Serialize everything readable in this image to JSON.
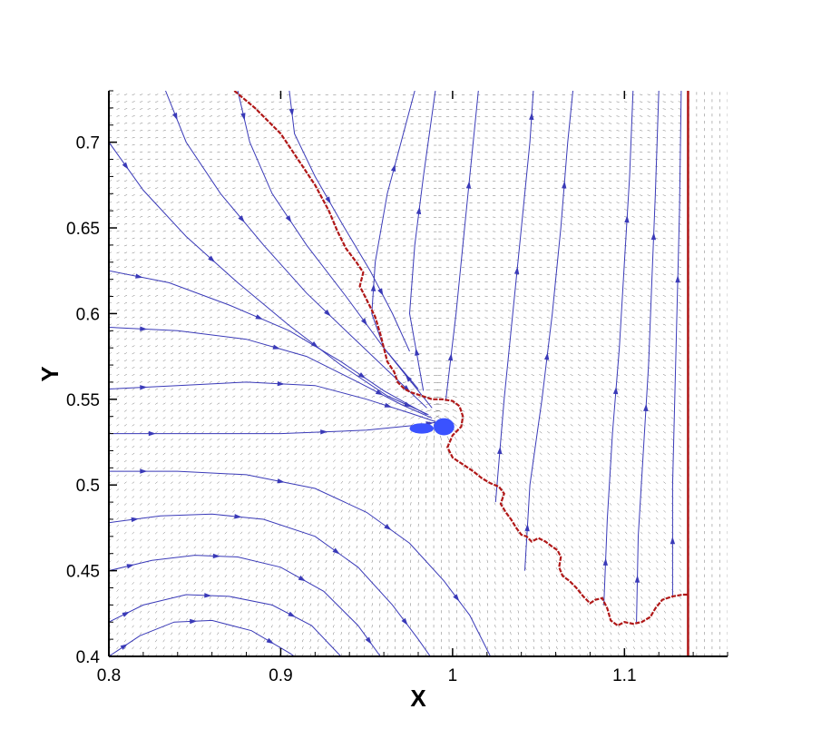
{
  "chart_data": {
    "type": "line",
    "title": "",
    "xlabel": "X",
    "ylabel": "Y",
    "xlim": [
      0.8,
      1.16
    ],
    "ylim": [
      0.4,
      0.73
    ],
    "x_ticks": [
      0.8,
      0.9,
      1.0,
      1.1
    ],
    "x_tick_labels": [
      "0.8",
      "0.9",
      "1",
      "1.1"
    ],
    "y_ticks": [
      0.4,
      0.45,
      0.5,
      0.55,
      0.6,
      0.65,
      0.7
    ],
    "y_tick_labels": [
      "0.4",
      "0.45",
      "0.5",
      "0.55",
      "0.6",
      "0.65",
      "0.7"
    ],
    "grid": false,
    "legend": "none",
    "colors": {
      "streamline": "#3a3ab8",
      "interface": "#b01818",
      "vector": "#000000",
      "blob": "#3a52ff"
    },
    "vertical_line_x": 1.137,
    "interface_curve": [
      [
        0.873,
        0.73
      ],
      [
        0.885,
        0.72
      ],
      [
        0.9,
        0.705
      ],
      [
        0.91,
        0.69
      ],
      [
        0.92,
        0.675
      ],
      [
        0.928,
        0.66
      ],
      [
        0.933,
        0.648
      ],
      [
        0.938,
        0.638
      ],
      [
        0.944,
        0.63
      ],
      [
        0.948,
        0.624
      ],
      [
        0.946,
        0.616
      ],
      [
        0.95,
        0.608
      ],
      [
        0.955,
        0.598
      ],
      [
        0.958,
        0.588
      ],
      [
        0.96,
        0.58
      ],
      [
        0.962,
        0.572
      ],
      [
        0.966,
        0.566
      ],
      [
        0.968,
        0.56
      ],
      [
        0.972,
        0.556
      ],
      [
        0.976,
        0.554
      ],
      [
        0.982,
        0.552
      ],
      [
        0.988,
        0.55
      ],
      [
        0.994,
        0.55
      ],
      [
        1.0,
        0.549
      ],
      [
        1.004,
        0.546
      ],
      [
        1.006,
        0.54
      ],
      [
        1.005,
        0.534
      ],
      [
        1.0,
        0.529
      ],
      [
        0.997,
        0.522
      ],
      [
        1.0,
        0.516
      ],
      [
        1.006,
        0.512
      ],
      [
        1.012,
        0.508
      ],
      [
        1.017,
        0.504
      ],
      [
        1.022,
        0.501
      ],
      [
        1.027,
        0.499
      ],
      [
        1.03,
        0.495
      ],
      [
        1.028,
        0.489
      ],
      [
        1.031,
        0.484
      ],
      [
        1.034,
        0.48
      ],
      [
        1.037,
        0.475
      ],
      [
        1.04,
        0.471
      ],
      [
        1.043,
        0.47
      ],
      [
        1.046,
        0.467
      ],
      [
        1.05,
        0.469
      ],
      [
        1.054,
        0.467
      ],
      [
        1.058,
        0.464
      ],
      [
        1.061,
        0.462
      ],
      [
        1.063,
        0.458
      ],
      [
        1.062,
        0.452
      ],
      [
        1.064,
        0.447
      ],
      [
        1.068,
        0.444
      ],
      [
        1.072,
        0.44
      ],
      [
        1.076,
        0.435
      ],
      [
        1.08,
        0.431
      ],
      [
        1.083,
        0.433
      ],
      [
        1.087,
        0.434
      ],
      [
        1.09,
        0.428
      ],
      [
        1.092,
        0.421
      ],
      [
        1.096,
        0.418
      ],
      [
        1.1,
        0.42
      ],
      [
        1.105,
        0.419
      ],
      [
        1.11,
        0.42
      ],
      [
        1.115,
        0.423
      ],
      [
        1.118,
        0.428
      ],
      [
        1.122,
        0.433
      ],
      [
        1.128,
        0.435
      ],
      [
        1.134,
        0.436
      ],
      [
        1.137,
        0.436
      ]
    ],
    "streamlines": [
      [
        [
          0.8,
          0.4
        ],
        [
          0.818,
          0.412
        ],
        [
          0.838,
          0.42
        ],
        [
          0.86,
          0.421
        ],
        [
          0.883,
          0.415
        ],
        [
          0.905,
          0.402
        ],
        [
          0.908,
          0.4
        ]
      ],
      [
        [
          0.8,
          0.42
        ],
        [
          0.82,
          0.43
        ],
        [
          0.845,
          0.436
        ],
        [
          0.87,
          0.435
        ],
        [
          0.895,
          0.43
        ],
        [
          0.918,
          0.418
        ],
        [
          0.935,
          0.4
        ]
      ],
      [
        [
          0.8,
          0.45
        ],
        [
          0.825,
          0.456
        ],
        [
          0.85,
          0.459
        ],
        [
          0.875,
          0.458
        ],
        [
          0.9,
          0.452
        ],
        [
          0.925,
          0.438
        ],
        [
          0.945,
          0.418
        ],
        [
          0.958,
          0.4
        ]
      ],
      [
        [
          0.8,
          0.478
        ],
        [
          0.83,
          0.482
        ],
        [
          0.86,
          0.483
        ],
        [
          0.89,
          0.48
        ],
        [
          0.92,
          0.47
        ],
        [
          0.945,
          0.452
        ],
        [
          0.965,
          0.43
        ],
        [
          0.98,
          0.41
        ],
        [
          0.987,
          0.4
        ]
      ],
      [
        [
          0.8,
          0.508
        ],
        [
          0.84,
          0.508
        ],
        [
          0.88,
          0.506
        ],
        [
          0.92,
          0.498
        ],
        [
          0.95,
          0.484
        ],
        [
          0.975,
          0.466
        ],
        [
          0.995,
          0.444
        ],
        [
          1.01,
          0.424
        ],
        [
          1.022,
          0.4
        ]
      ],
      [
        [
          0.8,
          0.53
        ],
        [
          0.85,
          0.53
        ],
        [
          0.9,
          0.53
        ],
        [
          0.95,
          0.532
        ],
        [
          0.98,
          0.535
        ],
        [
          0.993,
          0.537
        ]
      ],
      [
        [
          0.8,
          0.556
        ],
        [
          0.84,
          0.558
        ],
        [
          0.88,
          0.56
        ],
        [
          0.92,
          0.558
        ],
        [
          0.95,
          0.55
        ],
        [
          0.975,
          0.542
        ],
        [
          0.99,
          0.537
        ]
      ],
      [
        [
          0.8,
          0.592
        ],
        [
          0.84,
          0.59
        ],
        [
          0.88,
          0.585
        ],
        [
          0.915,
          0.575
        ],
        [
          0.945,
          0.56
        ],
        [
          0.97,
          0.547
        ],
        [
          0.988,
          0.539
        ]
      ],
      [
        [
          0.8,
          0.625
        ],
        [
          0.835,
          0.618
        ],
        [
          0.87,
          0.605
        ],
        [
          0.905,
          0.59
        ],
        [
          0.935,
          0.572
        ],
        [
          0.96,
          0.555
        ],
        [
          0.985,
          0.541
        ]
      ],
      [
        [
          0.8,
          0.7
        ],
        [
          0.82,
          0.672
        ],
        [
          0.845,
          0.645
        ],
        [
          0.875,
          0.618
        ],
        [
          0.905,
          0.593
        ],
        [
          0.935,
          0.57
        ],
        [
          0.962,
          0.552
        ],
        [
          0.986,
          0.541
        ]
      ],
      [
        [
          0.833,
          0.73
        ],
        [
          0.845,
          0.7
        ],
        [
          0.865,
          0.67
        ],
        [
          0.89,
          0.64
        ],
        [
          0.915,
          0.612
        ],
        [
          0.94,
          0.588
        ],
        [
          0.962,
          0.567
        ],
        [
          0.985,
          0.545
        ]
      ],
      [
        [
          0.875,
          0.73
        ],
        [
          0.882,
          0.7
        ],
        [
          0.895,
          0.67
        ],
        [
          0.915,
          0.64
        ],
        [
          0.938,
          0.61
        ],
        [
          0.96,
          0.58
        ],
        [
          0.98,
          0.556
        ]
      ],
      [
        [
          0.905,
          0.73
        ],
        [
          0.908,
          0.705
        ],
        [
          0.92,
          0.68
        ],
        [
          0.936,
          0.652
        ],
        [
          0.952,
          0.625
        ],
        [
          0.965,
          0.6
        ],
        [
          0.975,
          0.578
        ]
      ],
      [
        [
          0.988,
          0.545
        ],
        [
          0.96,
          0.58
        ],
        [
          0.953,
          0.6
        ],
        [
          0.955,
          0.63
        ],
        [
          0.962,
          0.67
        ],
        [
          0.97,
          0.7
        ],
        [
          0.978,
          0.73
        ]
      ],
      [
        [
          0.983,
          0.555
        ],
        [
          0.975,
          0.6
        ],
        [
          0.978,
          0.64
        ],
        [
          0.983,
          0.68
        ],
        [
          0.99,
          0.73
        ]
      ],
      [
        [
          0.996,
          0.549
        ],
        [
          1.002,
          0.6
        ],
        [
          1.007,
          0.65
        ],
        [
          1.012,
          0.7
        ],
        [
          1.015,
          0.73
        ]
      ],
      [
        [
          1.025,
          0.49
        ],
        [
          1.03,
          0.55
        ],
        [
          1.035,
          0.6
        ],
        [
          1.04,
          0.65
        ],
        [
          1.045,
          0.7
        ],
        [
          1.047,
          0.73
        ]
      ],
      [
        [
          1.042,
          0.45
        ],
        [
          1.045,
          0.5
        ],
        [
          1.052,
          0.55
        ],
        [
          1.058,
          0.6
        ],
        [
          1.063,
          0.65
        ],
        [
          1.067,
          0.7
        ],
        [
          1.07,
          0.73
        ]
      ],
      [
        [
          1.088,
          0.43
        ],
        [
          1.09,
          0.48
        ],
        [
          1.093,
          0.53
        ],
        [
          1.097,
          0.58
        ],
        [
          1.1,
          0.63
        ],
        [
          1.103,
          0.68
        ],
        [
          1.105,
          0.73
        ]
      ],
      [
        [
          1.107,
          0.42
        ],
        [
          1.108,
          0.47
        ],
        [
          1.111,
          0.52
        ],
        [
          1.114,
          0.57
        ],
        [
          1.116,
          0.62
        ],
        [
          1.118,
          0.67
        ],
        [
          1.12,
          0.73
        ]
      ],
      [
        [
          1.128,
          0.435
        ],
        [
          1.128,
          0.5
        ],
        [
          1.13,
          0.58
        ],
        [
          1.132,
          0.66
        ],
        [
          1.133,
          0.73
        ]
      ]
    ],
    "blobs": [
      {
        "x": 0.982,
        "y": 0.533,
        "rx": 0.007,
        "ry": 0.003
      },
      {
        "x": 0.995,
        "y": 0.534,
        "rx": 0.006,
        "ry": 0.005
      }
    ]
  }
}
